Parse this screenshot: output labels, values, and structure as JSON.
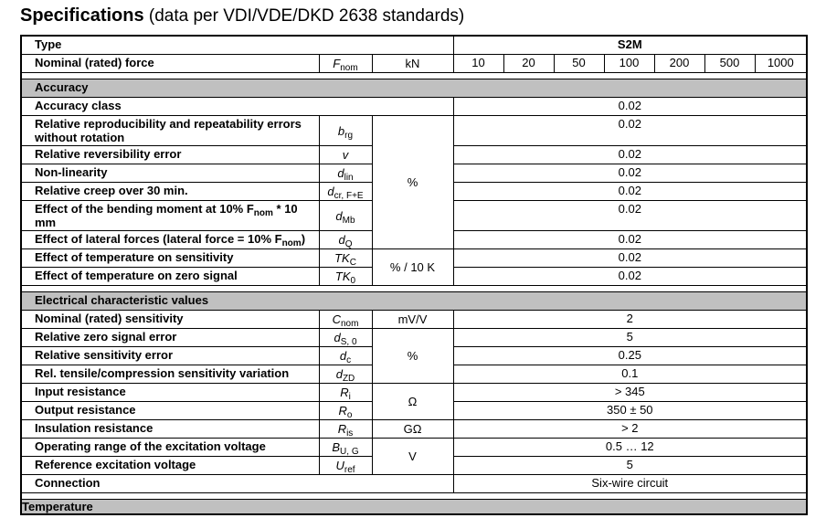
{
  "title": {
    "bold": "Specifications",
    "rest": " (data per VDI/VDE/DKD 2638 standards)"
  },
  "type_row": {
    "label": "Type",
    "value": "S2M"
  },
  "force_row": {
    "label": "Nominal (rated) force",
    "sym": {
      "b": "F",
      "s": "nom"
    },
    "unit": "kN",
    "values": [
      "10",
      "20",
      "50",
      "100",
      "200",
      "500",
      "1000"
    ]
  },
  "colors": {
    "section_bg": "#c0c0c0"
  },
  "sections": [
    {
      "title": "Accuracy",
      "rows": [
        {
          "label": [
            {
              "t": "Accuracy class"
            }
          ],
          "span3": true,
          "value": "0.02"
        },
        {
          "label": [
            {
              "t": "Relative reproducibility and repeatability errors without rotation"
            }
          ],
          "sym": {
            "b": "b",
            "s": "rg"
          },
          "unit": "%",
          "unit_rows": 6,
          "value": "0.02"
        },
        {
          "label": [
            {
              "t": "Relative reversibility error"
            }
          ],
          "sym": {
            "b": "v",
            "s": ""
          },
          "value": "0.02"
        },
        {
          "label": [
            {
              "t": "Non-linearity"
            }
          ],
          "sym": {
            "b": "d",
            "s": "lin"
          },
          "value": "0.02"
        },
        {
          "label": [
            {
              "t": "Relative creep over 30 min."
            }
          ],
          "sym": {
            "b": "d",
            "s": "cr, F+E"
          },
          "value": "0.02"
        },
        {
          "label": [
            {
              "t": "Effect of the bending moment at 10% F"
            },
            {
              "s": "nom"
            },
            {
              "t": " * 10 mm"
            }
          ],
          "sym": {
            "b": "d",
            "s": "Mb"
          },
          "value": "0.02"
        },
        {
          "label": [
            {
              "t": "Effect of lateral forces (lateral force = 10% F"
            },
            {
              "s": "nom"
            },
            {
              "t": ")"
            }
          ],
          "sym": {
            "b": "d",
            "s": "Q"
          },
          "value": "0.02"
        },
        {
          "label": [
            {
              "t": "Effect of temperature on sensitivity"
            }
          ],
          "sym": {
            "b": "TK",
            "s": "C"
          },
          "unit": "% / 10 K",
          "unit_rows": 2,
          "value": "0.02"
        },
        {
          "label": [
            {
              "t": "Effect of temperature on zero signal"
            }
          ],
          "sym": {
            "b": "TK",
            "s": "0"
          },
          "value": "0.02"
        }
      ]
    },
    {
      "title": "Electrical characteristic values",
      "rows": [
        {
          "label": [
            {
              "t": "Nominal (rated) sensitivity"
            }
          ],
          "sym": {
            "b": "C",
            "s": "nom"
          },
          "unit": "mV/V",
          "unit_rows": 1,
          "value": "2"
        },
        {
          "label": [
            {
              "t": "Relative zero signal error"
            }
          ],
          "sym": {
            "b": "d",
            "s": "S, 0"
          },
          "unit": "%",
          "unit_rows": 3,
          "value": "5"
        },
        {
          "label": [
            {
              "t": "Relative sensitivity error"
            }
          ],
          "sym": {
            "b": "d",
            "s": "c"
          },
          "value": "0.25"
        },
        {
          "label": [
            {
              "t": "Rel. tensile/compression sensitivity variation"
            }
          ],
          "sym": {
            "b": "d",
            "s": "ZD"
          },
          "value": "0.1"
        },
        {
          "label": [
            {
              "t": "Input resistance"
            }
          ],
          "sym": {
            "b": "R",
            "s": "i"
          },
          "unit": "Ω",
          "unit_rows": 2,
          "value": "> 345"
        },
        {
          "label": [
            {
              "t": "Output resistance"
            }
          ],
          "sym": {
            "b": "R",
            "s": "o"
          },
          "value": "350 ± 50"
        },
        {
          "label": [
            {
              "t": "Insulation resistance"
            }
          ],
          "sym": {
            "b": "R",
            "s": "is"
          },
          "unit": "GΩ",
          "unit_rows": 1,
          "value": "> 2"
        },
        {
          "label": [
            {
              "t": "Operating range of the excitation voltage"
            }
          ],
          "sym": {
            "b": "B",
            "s": "U, G"
          },
          "unit": "V",
          "unit_rows": 2,
          "value": "0.5 … 12"
        },
        {
          "label": [
            {
              "t": "Reference excitation voltage"
            }
          ],
          "sym": {
            "b": "U",
            "s": "ref"
          },
          "value": "5"
        },
        {
          "label": [
            {
              "t": "Connection"
            }
          ],
          "span3": true,
          "value": "Six-wire circuit"
        }
      ]
    },
    {
      "title": "Temperature",
      "rows": [],
      "cut": true
    }
  ]
}
